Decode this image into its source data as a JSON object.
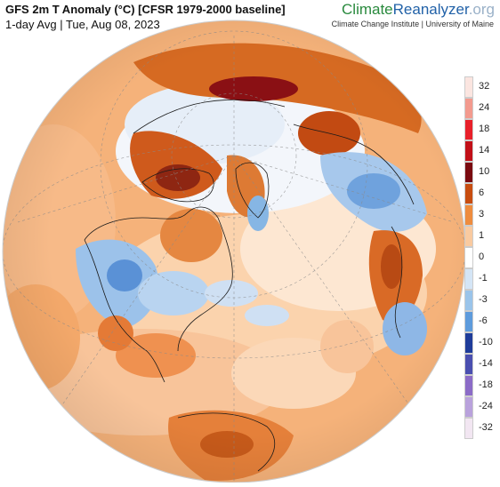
{
  "header": {
    "title": "GFS 2m T Anomaly (°C) [CFSR 1979-2000 baseline]",
    "subtitle": "1-day Avg | Tue, Aug 08, 2023"
  },
  "brand": {
    "part1": "Climate",
    "part2": "Reanalyzer",
    "part3": ".org",
    "tagline": "Climate Change Institute | University of Maine"
  },
  "legend": {
    "items": [
      {
        "label": "32",
        "color": "#fbe5e0"
      },
      {
        "label": "24",
        "color": "#f39a8e"
      },
      {
        "label": "18",
        "color": "#e8202a"
      },
      {
        "label": "14",
        "color": "#c21018"
      },
      {
        "label": "10",
        "color": "#7a0a10"
      },
      {
        "label": "6",
        "color": "#c84d10"
      },
      {
        "label": "3",
        "color": "#ee8c3e"
      },
      {
        "label": "1",
        "color": "#f9caa0"
      },
      {
        "label": "0",
        "color": "#ffffff"
      },
      {
        "label": "-1",
        "color": "#d4e5f6"
      },
      {
        "label": "-3",
        "color": "#9ac4ea"
      },
      {
        "label": "-6",
        "color": "#5e9bdc"
      },
      {
        "label": "-10",
        "color": "#1f3c9a"
      },
      {
        "label": "-14",
        "color": "#4a4fb0"
      },
      {
        "label": "-18",
        "color": "#8b6bc7"
      },
      {
        "label": "-24",
        "color": "#b9a2dc"
      },
      {
        "label": "-32",
        "color": "#f2e6f2"
      }
    ]
  }
}
